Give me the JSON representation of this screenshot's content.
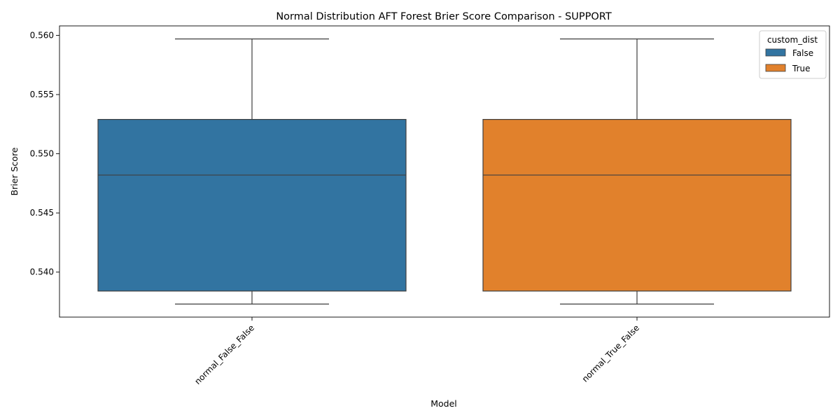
{
  "chart_data": {
    "type": "box",
    "title": "Normal Distribution AFT Forest Brier Score Comparison - SUPPORT",
    "xlabel": "Model",
    "ylabel": "Brier Score",
    "ylim": [
      0.5362,
      0.5608
    ],
    "yticks": [
      "0.540",
      "0.545",
      "0.550",
      "0.555",
      "0.560"
    ],
    "ytick_values": [
      0.54,
      0.545,
      0.55,
      0.555,
      0.56
    ],
    "categories": [
      "normal_False_False",
      "normal_True_False"
    ],
    "grid": false,
    "legend": {
      "title": "custom_dist",
      "placement": "top-right",
      "entries": [
        {
          "label": "False",
          "color": "#3274a1"
        },
        {
          "label": "True",
          "color": "#e1812c"
        }
      ]
    },
    "series": [
      {
        "name": "False",
        "category": "normal_False_False",
        "color": "#3274a1",
        "whisker_low": 0.5373,
        "q1": 0.5384,
        "median": 0.5482,
        "q3": 0.5529,
        "whisker_high": 0.5597
      },
      {
        "name": "True",
        "category": "normal_True_False",
        "color": "#e1812c",
        "whisker_low": 0.5373,
        "q1": 0.5384,
        "median": 0.5482,
        "q3": 0.5529,
        "whisker_high": 0.5597
      }
    ]
  }
}
